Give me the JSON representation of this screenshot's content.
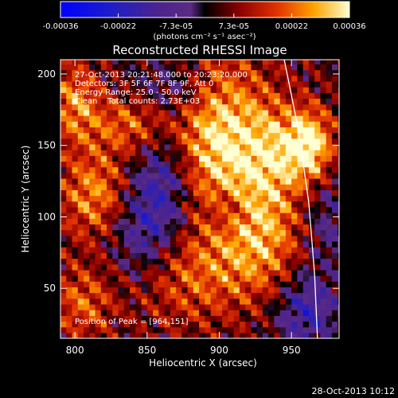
{
  "chart_data": {
    "type": "heatmap",
    "title": "Reconstructed RHESSI Image",
    "xlabel": "Heliocentric X (arcsec)",
    "ylabel": "Heliocentric Y (arcsec)",
    "xlim": [
      790,
      983
    ],
    "ylim": [
      15,
      210
    ],
    "xticks": [
      800,
      850,
      900,
      950
    ],
    "yticks": [
      50,
      100,
      150,
      200
    ],
    "colorbar": {
      "range": [
        -0.00036,
        0.00036
      ],
      "tick_labels": [
        "-0.00036",
        "-0.00022",
        "-7.3e-05",
        "7.3e-05",
        "0.00022",
        "0.00036"
      ],
      "unit_label": "(photons cm⁻² s⁻¹ asec⁻²)"
    },
    "annotations": [
      "27-Oct-2013 20:21:48.000 to 20:23:20.000",
      "Detectors: 3F 5F 6F 7F 8F 9F, Att 0",
      "Energy Range: 25.0 - 50.0 keV",
      "Clean    Total counts: 2.73E+03"
    ],
    "peak_label": "Position of Peak = [964,151]",
    "peak": [
      964,
      151
    ],
    "limb_x_at_y": [
      [
        945,
        210
      ],
      [
        955,
        160
      ],
      [
        962,
        110
      ],
      [
        966,
        60
      ],
      [
        968,
        15
      ]
    ],
    "blobs": [
      {
        "x": 900,
        "y": 155,
        "amp": 0.0003,
        "sx": 22,
        "sy": 40
      },
      {
        "x": 962,
        "y": 150,
        "amp": 0.00034,
        "sx": 12,
        "sy": 18
      },
      {
        "x": 935,
        "y": 140,
        "amp": 0.0002,
        "sx": 15,
        "sy": 30
      },
      {
        "x": 815,
        "y": 115,
        "amp": 0.00022,
        "sx": 18,
        "sy": 22
      },
      {
        "x": 840,
        "y": 165,
        "amp": 0.00018,
        "sx": 20,
        "sy": 15
      },
      {
        "x": 800,
        "y": 180,
        "amp": 0.0002,
        "sx": 12,
        "sy": 20
      },
      {
        "x": 880,
        "y": 60,
        "amp": 0.00016,
        "sx": 30,
        "sy": 25
      },
      {
        "x": 930,
        "y": 80,
        "amp": 0.00018,
        "sx": 20,
        "sy": 25
      },
      {
        "x": 805,
        "y": 40,
        "amp": 0.00016,
        "sx": 15,
        "sy": 18
      },
      {
        "x": 860,
        "y": 125,
        "amp": -0.00018,
        "sx": 15,
        "sy": 30
      },
      {
        "x": 845,
        "y": 90,
        "amp": -0.00016,
        "sx": 18,
        "sy": 25
      },
      {
        "x": 870,
        "y": 190,
        "amp": -0.00012,
        "sx": 20,
        "sy": 15
      },
      {
        "x": 960,
        "y": 35,
        "amp": -0.0002,
        "sx": 15,
        "sy": 20
      },
      {
        "x": 975,
        "y": 100,
        "amp": -0.0001,
        "sx": 12,
        "sy": 25
      },
      {
        "x": 905,
        "y": 105,
        "amp": -0.0001,
        "sx": 10,
        "sy": 10
      }
    ]
  },
  "footer_timestamp": "28-Oct-2013 10:12"
}
